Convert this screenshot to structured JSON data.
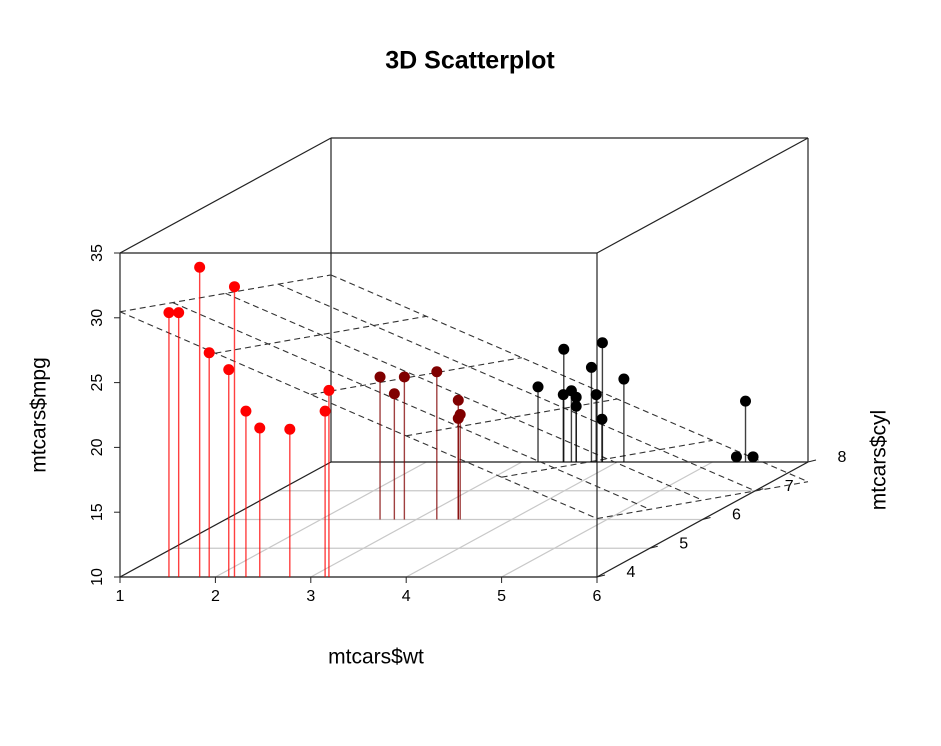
{
  "chart_data": {
    "type": "scatter3d",
    "title": "3D Scatterplot",
    "x_label": "mtcars$wt",
    "y_label": "mtcars$cyl",
    "z_label": "mtcars$mpg",
    "x": [
      2.62,
      2.875,
      2.32,
      3.215,
      3.44,
      3.46,
      3.57,
      3.19,
      3.15,
      3.44,
      3.44,
      4.07,
      3.73,
      3.78,
      5.25,
      5.424,
      5.345,
      2.2,
      1.615,
      1.835,
      2.465,
      3.52,
      3.435,
      3.84,
      3.845,
      1.935,
      2.14,
      1.513,
      3.17,
      2.77,
      3.57,
      2.78
    ],
    "y": [
      6,
      6,
      4,
      6,
      8,
      6,
      8,
      4,
      4,
      6,
      6,
      8,
      8,
      8,
      8,
      8,
      8,
      4,
      4,
      4,
      4,
      8,
      8,
      8,
      8,
      4,
      4,
      4,
      8,
      6,
      8,
      4
    ],
    "z": [
      21.0,
      21.0,
      22.8,
      21.4,
      18.7,
      18.1,
      14.3,
      24.4,
      22.8,
      19.2,
      17.8,
      16.4,
      17.3,
      15.2,
      10.4,
      10.4,
      14.7,
      32.4,
      30.4,
      33.9,
      21.5,
      15.5,
      15.2,
      13.3,
      19.2,
      27.3,
      26.0,
      30.4,
      15.8,
      19.7,
      15.0,
      21.4
    ],
    "xlim": [
      1,
      6
    ],
    "ylim": [
      4,
      8
    ],
    "zlim": [
      10,
      35
    ],
    "xticks": [
      1,
      2,
      3,
      4,
      5,
      6
    ],
    "yticks": [
      4,
      5,
      6,
      7,
      8
    ],
    "zticks": [
      10,
      15,
      20,
      25,
      30,
      35
    ],
    "grid": true,
    "regression_plane": true,
    "stems": true,
    "highlight_colors": [
      "#ff0000",
      "#000000"
    ]
  }
}
